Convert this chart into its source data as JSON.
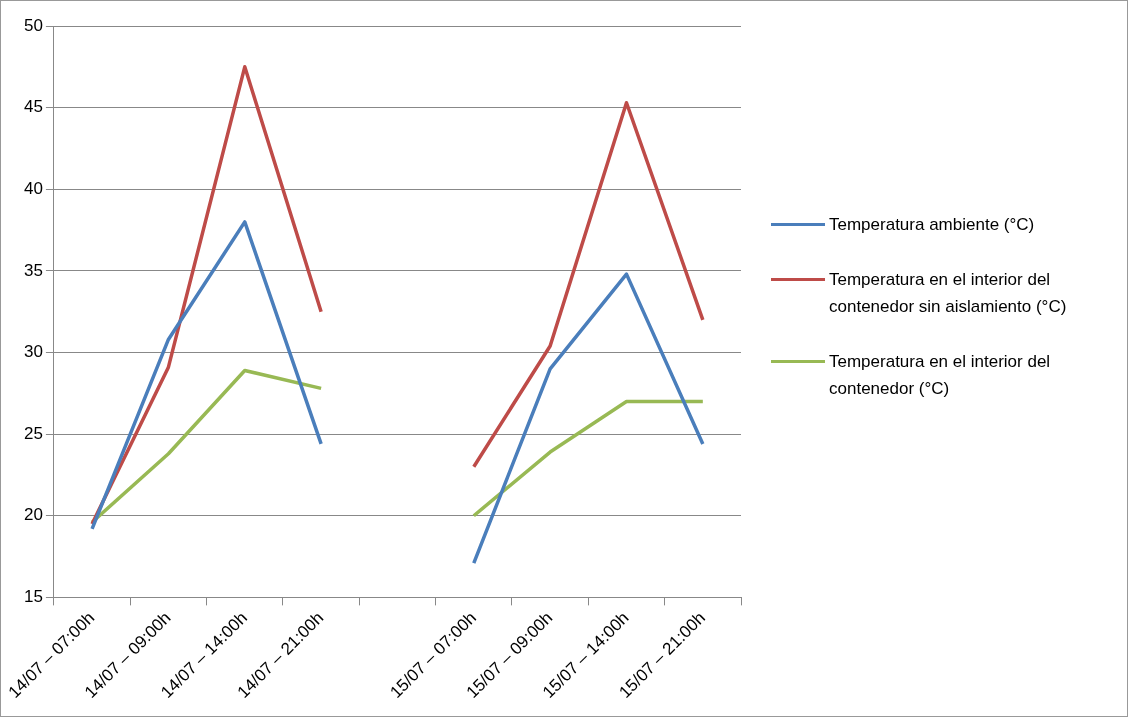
{
  "chart_data": {
    "type": "line",
    "categories": [
      "14/07 – 07:00h",
      "14/07 – 09:00h",
      "14/07 – 14:00h",
      "14/07 – 21:00h",
      null,
      "15/07 – 07:00h",
      "15/07 – 09:00h",
      "15/07 – 14:00h",
      "15/07 – 21:00h"
    ],
    "series": [
      {
        "name": "Temperatura ambiente (°C)",
        "color": "#4a7ebb",
        "values": [
          19.2,
          30.8,
          38,
          24.4,
          null,
          17.1,
          29,
          34.8,
          24.4
        ]
      },
      {
        "name": "Temperatura en el interior del contenedor sin aislamiento (°C)",
        "color": "#be4b48",
        "values": [
          19.5,
          29.1,
          47.5,
          32.5,
          null,
          23,
          30.4,
          45.3,
          32
        ]
      },
      {
        "name": "Temperatura en el interior del contenedor (°C)",
        "color": "#98b954",
        "values": [
          19.6,
          23.8,
          28.9,
          27.8,
          null,
          20,
          23.9,
          27,
          27
        ]
      }
    ],
    "ylim": [
      15,
      50
    ],
    "yticks": [
      15,
      20,
      25,
      30,
      35,
      40,
      45,
      50
    ],
    "grid": "y",
    "legend": "right",
    "marker": "none",
    "line_style": "solid"
  }
}
